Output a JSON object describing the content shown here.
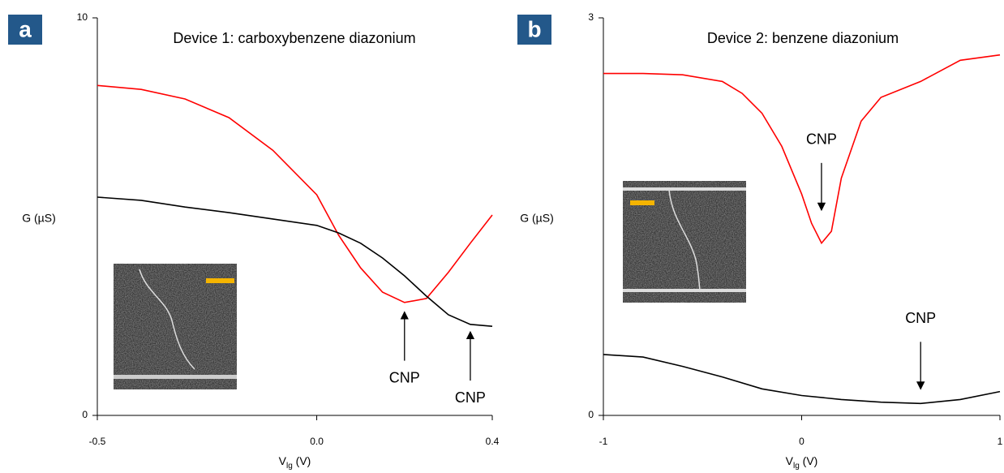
{
  "chart_data": [
    {
      "type": "line",
      "panel_label": "a",
      "title": "Device 1: carboxybenzene diazonium",
      "ylabel": "G (µS)",
      "xlabel": [
        "V",
        "lg",
        " (V)"
      ],
      "xlim": [
        -0.5,
        0.4
      ],
      "xticks": [
        -0.5,
        {
          "value": 0,
          "label": "0.0"
        },
        0.4
      ],
      "ylim": [
        0,
        10
      ],
      "yticks": [
        0,
        10
      ],
      "series": [
        {
          "color": "#ff0000",
          "x": [
            -0.5,
            -0.4,
            -0.3,
            -0.2,
            -0.1,
            0,
            0.05,
            0.1,
            0.15,
            0.2,
            0.25,
            0.3,
            0.35,
            0.4
          ],
          "values": [
            8.3,
            8.2,
            7.96,
            7.49,
            6.67,
            5.55,
            4.53,
            3.71,
            3.1,
            2.84,
            2.94,
            3.6,
            4.33,
            5.04
          ]
        },
        {
          "color": "#000000",
          "x": [
            -0.5,
            -0.4,
            -0.3,
            -0.2,
            -0.1,
            0,
            0.05,
            0.1,
            0.15,
            0.2,
            0.25,
            0.3,
            0.35,
            0.4
          ],
          "values": [
            5.49,
            5.41,
            5.24,
            5.1,
            4.94,
            4.78,
            4.59,
            4.33,
            3.96,
            3.51,
            3.0,
            2.53,
            2.29,
            2.24
          ]
        }
      ],
      "annotations": [
        {
          "text": "CNP",
          "x": 0.2,
          "y": 2.6,
          "direction": "up"
        },
        {
          "text": "CNP",
          "x": 0.35,
          "y": 2.1,
          "direction": "up"
        }
      ]
    },
    {
      "type": "line",
      "panel_label": "b",
      "title": "Device 2: benzene diazonium",
      "ylabel": "G (µS)",
      "xlabel": [
        "V",
        "lg",
        " (V)"
      ],
      "xlim": [
        -1,
        1
      ],
      "xticks": [
        -1,
        0,
        1
      ],
      "ylim": [
        0,
        3
      ],
      "yticks": [
        0,
        3
      ],
      "series": [
        {
          "color": "#ff0000",
          "x": [
            -1,
            -0.8,
            -0.6,
            -0.4,
            -0.3,
            -0.2,
            -0.1,
            0,
            0.05,
            0.1,
            0.15,
            0.2,
            0.3,
            0.4,
            0.6,
            0.8,
            1
          ],
          "values": [
            2.58,
            2.58,
            2.57,
            2.52,
            2.43,
            2.28,
            2.03,
            1.67,
            1.45,
            1.3,
            1.39,
            1.79,
            2.22,
            2.4,
            2.52,
            2.68,
            2.72
          ]
        },
        {
          "color": "#000000",
          "x": [
            -1,
            -0.8,
            -0.6,
            -0.4,
            -0.2,
            0,
            0.2,
            0.4,
            0.6,
            0.8,
            1
          ],
          "values": [
            0.46,
            0.44,
            0.37,
            0.29,
            0.2,
            0.15,
            0.12,
            0.1,
            0.09,
            0.12,
            0.18
          ]
        }
      ],
      "annotations": [
        {
          "text": "CNP",
          "x": 0.1,
          "y": 1.55,
          "direction": "down"
        },
        {
          "text": "CNP",
          "x": 0.6,
          "y": 0.2,
          "direction": "down"
        }
      ]
    }
  ]
}
